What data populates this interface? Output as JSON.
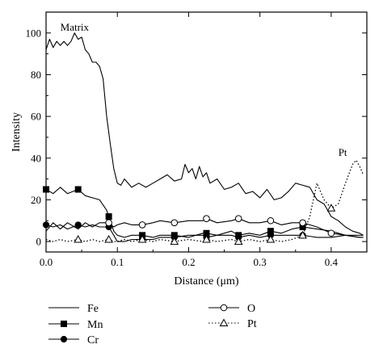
{
  "chart_data": {
    "type": "line",
    "xlabel": "Distance (μm)",
    "ylabel": "Intensity",
    "xlim": [
      0,
      0.45
    ],
    "ylim": [
      -5,
      110
    ],
    "xticks": [
      0.0,
      0.1,
      0.2,
      0.3,
      0.4
    ],
    "xtick_labels": [
      "0.0",
      "0.1",
      "0.2",
      "0.3",
      "0.4"
    ],
    "yticks": [
      0,
      20,
      40,
      60,
      80,
      100
    ],
    "ytick_labels": [
      "0",
      "20",
      "40",
      "60",
      "80",
      "100"
    ],
    "grid": false,
    "legend_position": "bottom",
    "annotations": [
      {
        "text": "Matrix",
        "x": 0.02,
        "y": 101
      },
      {
        "text": "Pt",
        "x": 0.41,
        "y": 41
      }
    ],
    "series": [
      {
        "name": "Fe",
        "line": "solid",
        "marker": "none",
        "x": [
          0.0,
          0.005,
          0.01,
          0.015,
          0.02,
          0.025,
          0.03,
          0.035,
          0.04,
          0.045,
          0.05,
          0.055,
          0.06,
          0.065,
          0.07,
          0.075,
          0.08,
          0.085,
          0.09,
          0.095,
          0.1,
          0.105,
          0.11,
          0.12,
          0.13,
          0.14,
          0.15,
          0.16,
          0.17,
          0.18,
          0.19,
          0.195,
          0.2,
          0.205,
          0.21,
          0.215,
          0.22,
          0.225,
          0.23,
          0.24,
          0.25,
          0.26,
          0.27,
          0.28,
          0.29,
          0.3,
          0.31,
          0.32,
          0.33,
          0.34,
          0.35,
          0.36,
          0.37,
          0.38,
          0.39,
          0.4,
          0.41,
          0.42,
          0.43,
          0.44,
          0.445
        ],
        "y": [
          92,
          97,
          93,
          96,
          94,
          96,
          94,
          96,
          100,
          97,
          98,
          92,
          90,
          86,
          86,
          84,
          78,
          60,
          47,
          35,
          28,
          27,
          30,
          26,
          28,
          26,
          28,
          30,
          32,
          29,
          30,
          37,
          33,
          35,
          30,
          36,
          31,
          33,
          28,
          30,
          25,
          26,
          28,
          23,
          24,
          21,
          25,
          20,
          21,
          24,
          28,
          27,
          26,
          20,
          18,
          12,
          10,
          7,
          5,
          4,
          3
        ]
      },
      {
        "name": "Mn",
        "line": "solid",
        "marker": "square",
        "x": [
          0.0,
          0.01,
          0.02,
          0.03,
          0.045,
          0.055,
          0.065,
          0.075,
          0.085,
          0.09,
          0.095,
          0.1,
          0.11,
          0.12,
          0.135,
          0.15,
          0.16,
          0.18,
          0.2,
          0.22,
          0.225,
          0.24,
          0.26,
          0.27,
          0.285,
          0.3,
          0.315,
          0.33,
          0.345,
          0.36,
          0.38,
          0.4,
          0.42,
          0.44,
          0.445
        ],
        "y": [
          25,
          23,
          26,
          23,
          25,
          22,
          21,
          20,
          15,
          10,
          5,
          3,
          2,
          3,
          3,
          2,
          3,
          3,
          2,
          4,
          4,
          3,
          5,
          3,
          4,
          3,
          5,
          4,
          6,
          7,
          6,
          5,
          3,
          2,
          2
        ]
      },
      {
        "name": "Cr",
        "line": "solid",
        "marker": "circle-filled",
        "x": [
          0.0,
          0.01,
          0.02,
          0.03,
          0.045,
          0.055,
          0.065,
          0.075,
          0.088,
          0.095,
          0.1,
          0.11,
          0.12,
          0.135,
          0.15,
          0.16,
          0.18,
          0.2,
          0.22,
          0.225,
          0.24,
          0.26,
          0.27,
          0.285,
          0.3,
          0.315,
          0.33,
          0.345,
          0.36,
          0.38,
          0.4,
          0.42,
          0.44,
          0.445
        ],
        "y": [
          8,
          7,
          8,
          6,
          8,
          7,
          8,
          7,
          7,
          3,
          0,
          0,
          1,
          1,
          1,
          2,
          2,
          3,
          3,
          2,
          3,
          3,
          2,
          3,
          2,
          3,
          3,
          3,
          3,
          2,
          2,
          3,
          2,
          2
        ]
      },
      {
        "name": "O",
        "line": "solid",
        "marker": "circle-open",
        "x": [
          0.0,
          0.01,
          0.02,
          0.03,
          0.045,
          0.055,
          0.065,
          0.075,
          0.088,
          0.095,
          0.1,
          0.11,
          0.12,
          0.135,
          0.15,
          0.16,
          0.18,
          0.2,
          0.22,
          0.225,
          0.24,
          0.26,
          0.27,
          0.285,
          0.3,
          0.315,
          0.33,
          0.345,
          0.36,
          0.38,
          0.4,
          0.42,
          0.44,
          0.445
        ],
        "y": [
          5,
          9,
          6,
          9,
          6,
          9,
          7,
          9,
          9,
          7,
          8,
          9,
          8,
          8,
          9,
          10,
          9,
          10,
          10,
          11,
          9,
          10,
          11,
          9,
          9,
          10,
          8,
          9,
          9,
          7,
          4,
          3,
          3,
          3
        ]
      },
      {
        "name": "Pt",
        "line": "dotted",
        "marker": "triangle-open",
        "x": [
          0.0,
          0.01,
          0.02,
          0.03,
          0.045,
          0.055,
          0.065,
          0.075,
          0.088,
          0.095,
          0.1,
          0.11,
          0.12,
          0.135,
          0.15,
          0.16,
          0.18,
          0.2,
          0.22,
          0.225,
          0.24,
          0.26,
          0.27,
          0.285,
          0.3,
          0.315,
          0.33,
          0.345,
          0.36,
          0.37,
          0.38,
          0.39,
          0.4,
          0.41,
          0.42,
          0.43,
          0.435,
          0.44,
          0.445
        ],
        "y": [
          1,
          0,
          1,
          0,
          1,
          0,
          1,
          0,
          1,
          0,
          0,
          1,
          0,
          1,
          0,
          1,
          0,
          1,
          0,
          1,
          0,
          1,
          0,
          1,
          0,
          1,
          0,
          1,
          3,
          12,
          28,
          20,
          16,
          18,
          28,
          37,
          39,
          36,
          32
        ]
      }
    ],
    "markers": {
      "Mn": [
        0.0,
        0.045,
        0.088,
        0.135,
        0.18,
        0.225,
        0.27,
        0.315,
        0.36
      ],
      "Cr": [
        0.0,
        0.045,
        0.088,
        0.135,
        0.18,
        0.225,
        0.27,
        0.315,
        0.36
      ],
      "O": [
        0.088,
        0.135,
        0.18,
        0.225,
        0.27,
        0.315,
        0.36,
        0.4
      ],
      "Pt": [
        0.045,
        0.088,
        0.135,
        0.18,
        0.225,
        0.27,
        0.315,
        0.36,
        0.4
      ]
    },
    "legend": [
      {
        "name": "Fe",
        "marker": "none",
        "line": "solid"
      },
      {
        "name": "Mn",
        "marker": "square",
        "line": "solid"
      },
      {
        "name": "Cr",
        "marker": "circle-filled",
        "line": "solid"
      },
      {
        "name": "O",
        "marker": "circle-open",
        "line": "solid"
      },
      {
        "name": "Pt",
        "marker": "triangle-open",
        "line": "dotted"
      }
    ]
  }
}
